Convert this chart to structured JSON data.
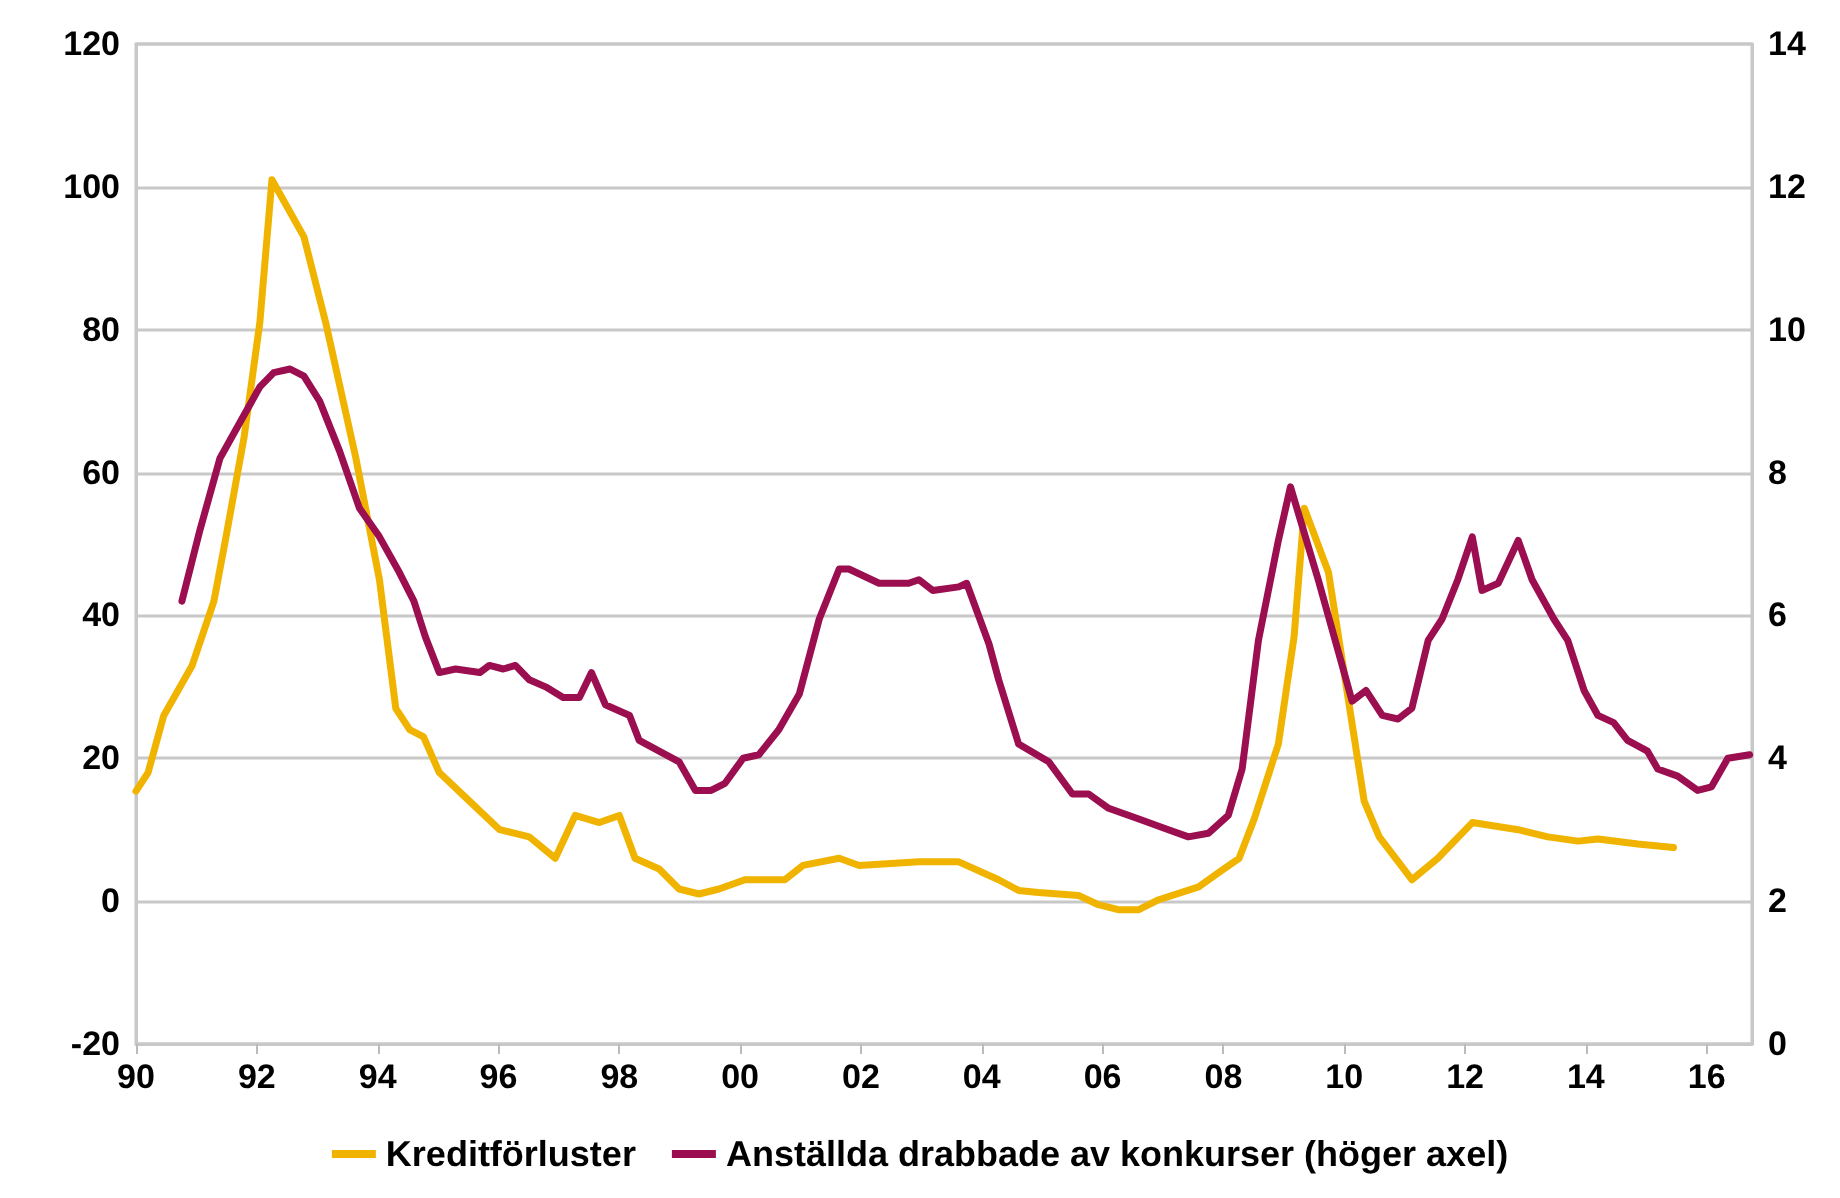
{
  "chart_data": {
    "type": "line",
    "x": [
      1990.0,
      1990.2,
      1990.46,
      1990.93,
      1991.29,
      1991.49,
      1991.79,
      1992.05,
      1992.25,
      1992.78,
      1993.14,
      1993.64,
      1994.03,
      1994.3,
      1994.53,
      1994.76,
      1995.02,
      1995.52,
      1996.02,
      1996.51,
      1996.94,
      1997.27,
      1997.67,
      1998.0,
      1998.26,
      1998.66,
      1998.99,
      1999.32,
      1999.65,
      2000.08,
      2000.74,
      2001.04,
      2001.64,
      2001.97,
      2002.96,
      2003.62,
      2004.28,
      2004.61,
      2004.94,
      2005.6,
      2005.93,
      2006.26,
      2006.6,
      2006.93,
      2007.59,
      2007.92,
      2008.26,
      2008.51,
      2008.91,
      2009.17,
      2009.34,
      2009.74,
      2010.33,
      2010.58,
      2011.12,
      2011.55,
      2012.12,
      2012.88,
      2013.37,
      2013.87,
      2014.2,
      2014.86,
      2015.45
    ],
    "series": [
      {
        "name": "Kreditförluster",
        "color": "#f0b400",
        "values": [
          15.4,
          18,
          26,
          33,
          42,
          51,
          65,
          81,
          101,
          93,
          81,
          62,
          45,
          27,
          24,
          23,
          18,
          14,
          10,
          9,
          6,
          12,
          11,
          12,
          6,
          4.5,
          1.7,
          1,
          1.7,
          3,
          3,
          5,
          6,
          5,
          5.5,
          5.5,
          3,
          1.5,
          1.2,
          0.8,
          -0.5,
          -1.2,
          -1.2,
          0.2,
          2,
          4,
          6,
          11.5,
          22,
          37,
          55,
          46,
          14,
          9,
          3,
          6,
          11,
          10,
          9,
          8.4,
          8.7,
          8,
          7.5
        ]
      },
      {
        "name": "Anställda drabbade av konkurser (höger axel)",
        "color": "#9b0e4f",
        "axis": "y2",
        "x": [
          1990.76,
          1991.06,
          1991.39,
          1991.72,
          1992.05,
          1992.28,
          1992.55,
          1992.78,
          1993.04,
          1993.37,
          1993.7,
          1994.03,
          1994.36,
          1994.6,
          1994.79,
          1995.02,
          1995.29,
          1995.69,
          1995.85,
          1996.08,
          1996.28,
          1996.51,
          1996.78,
          1997.07,
          1997.34,
          1997.54,
          1997.77,
          1998.17,
          1998.33,
          1998.66,
          1998.99,
          1999.26,
          1999.52,
          1999.75,
          2000.05,
          2000.31,
          2000.64,
          2000.98,
          2001.31,
          2001.64,
          2001.8,
          2002.3,
          2002.79,
          2002.96,
          2003.19,
          2003.62,
          2003.75,
          2004.12,
          2004.28,
          2004.61,
          2005.11,
          2005.5,
          2005.77,
          2006.1,
          2006.6,
          2007.09,
          2007.42,
          2007.75,
          2008.08,
          2008.31,
          2008.58,
          2008.91,
          2009.11,
          2009.57,
          2009.9,
          2010.13,
          2010.36,
          2010.63,
          2010.89,
          2011.12,
          2011.39,
          2011.62,
          2011.88,
          2012.12,
          2012.28,
          2012.55,
          2012.88,
          2013.11,
          2013.47,
          2013.7,
          2013.97,
          2014.2,
          2014.46,
          2014.69,
          2015.02,
          2015.19,
          2015.52,
          2015.85,
          2016.08,
          2016.35,
          2016.71
        ],
        "values": [
          6.2,
          7.2,
          8.2,
          8.7,
          9.2,
          9.4,
          9.45,
          9.35,
          9.0,
          8.3,
          7.5,
          7.1,
          6.6,
          6.2,
          5.7,
          5.2,
          5.25,
          5.2,
          5.3,
          5.25,
          5.3,
          5.1,
          5.0,
          4.85,
          4.85,
          5.2,
          4.75,
          4.6,
          4.25,
          4.1,
          3.95,
          3.55,
          3.55,
          3.65,
          4.0,
          4.05,
          4.4,
          4.9,
          5.95,
          6.65,
          6.65,
          6.45,
          6.45,
          6.5,
          6.35,
          6.4,
          6.45,
          5.6,
          5.1,
          4.2,
          3.95,
          3.5,
          3.5,
          3.3,
          3.15,
          3.0,
          2.9,
          2.95,
          3.2,
          3.85,
          5.65,
          7.05,
          7.8,
          6.5,
          5.5,
          4.8,
          4.95,
          4.6,
          4.55,
          4.7,
          5.65,
          5.95,
          6.5,
          7.1,
          6.35,
          6.45,
          7.05,
          6.5,
          5.95,
          5.65,
          4.95,
          4.6,
          4.5,
          4.25,
          4.1,
          3.85,
          3.75,
          3.55,
          3.6,
          4.0,
          4.05
        ]
      }
    ],
    "xlim": [
      1990,
      2016.75
    ],
    "xticks": [
      {
        "value": 1990,
        "label": "90"
      },
      {
        "value": 1992,
        "label": "92"
      },
      {
        "value": 1994,
        "label": "94"
      },
      {
        "value": 1996,
        "label": "96"
      },
      {
        "value": 1998,
        "label": "98"
      },
      {
        "value": 2000,
        "label": "00"
      },
      {
        "value": 2002,
        "label": "02"
      },
      {
        "value": 2004,
        "label": "04"
      },
      {
        "value": 2006,
        "label": "06"
      },
      {
        "value": 2008,
        "label": "08"
      },
      {
        "value": 2010,
        "label": "10"
      },
      {
        "value": 2012,
        "label": "12"
      },
      {
        "value": 2014,
        "label": "14"
      },
      {
        "value": 2016,
        "label": "16"
      }
    ],
    "ylim": [
      -20,
      120
    ],
    "yticks": [
      -20,
      0,
      20,
      40,
      60,
      80,
      100,
      120
    ],
    "y2lim": [
      0,
      14
    ],
    "y2ticks": [
      0,
      2,
      4,
      6,
      8,
      10,
      12,
      14
    ],
    "grid": "y",
    "legend": "bottom",
    "marker": "none",
    "line_style": "solid"
  }
}
